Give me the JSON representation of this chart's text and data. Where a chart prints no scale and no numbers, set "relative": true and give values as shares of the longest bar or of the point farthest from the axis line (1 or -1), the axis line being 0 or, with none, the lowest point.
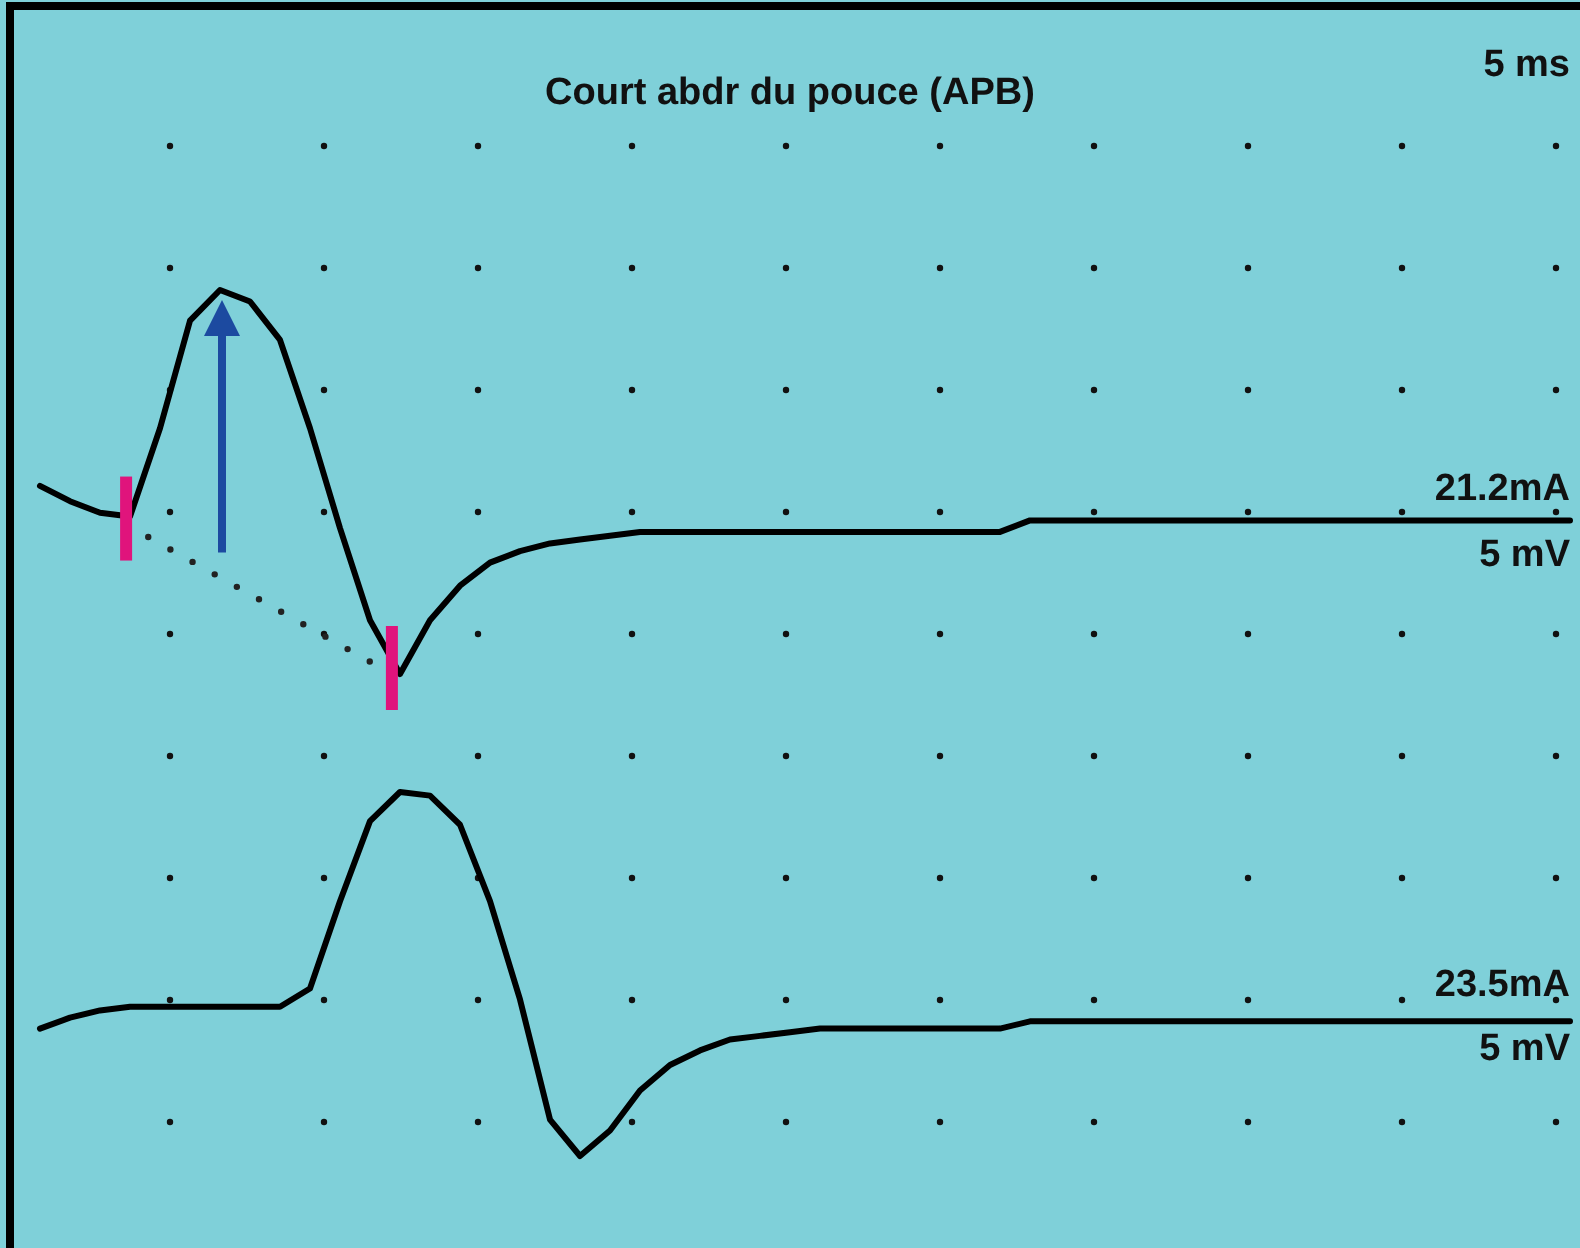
{
  "chart_data": [
    {
      "type": "line",
      "title": "Court abdr du pouce (APB)",
      "relative": true,
      "annotations": [
        "5 ms",
        "21.2mA",
        "5 mV"
      ],
      "categories": [
        null,
        null,
        null,
        null,
        null,
        null,
        null,
        null,
        null,
        null,
        null,
        null,
        null,
        null,
        null,
        null,
        null,
        null,
        null,
        null,
        null,
        null,
        null,
        null,
        null,
        null,
        null,
        null,
        null,
        null,
        null,
        null,
        null,
        null,
        null,
        null,
        null,
        null,
        null,
        null,
        null,
        null,
        null,
        null,
        null,
        null,
        null,
        null,
        null,
        null,
        null,
        null
      ],
      "series": [
        {
          "color": "#000000",
          "values": [
            0.49,
            0.45,
            0.42,
            0.41,
            0.64,
            0.92,
            1,
            0.97,
            0.87,
            0.64,
            0.38,
            0.14,
            0,
            0.14,
            0.23,
            0.29,
            0.32,
            0.34,
            0.35,
            0.36,
            0.37,
            0.37,
            0.37,
            0.37,
            0.37,
            0.37,
            0.37,
            0.37,
            0.37,
            0.37,
            0.37,
            0.37,
            0.37,
            0.4,
            0.4,
            0.4,
            0.4,
            0.4,
            0.4,
            0.4,
            0.4,
            0.4,
            0.4,
            0.4,
            0.4,
            0.4,
            0.4,
            0.4,
            0.4,
            0.4,
            0.4,
            0.4
          ]
        }
      ]
    },
    {
      "type": "line",
      "relative": true,
      "annotations": [
        "23.5mA",
        "5 mV"
      ],
      "categories": [
        null,
        null,
        null,
        null,
        null,
        null,
        null,
        null,
        null,
        null,
        null,
        null,
        null,
        null,
        null,
        null,
        null,
        null,
        null,
        null,
        null,
        null,
        null,
        null,
        null,
        null,
        null,
        null,
        null,
        null,
        null,
        null,
        null,
        null,
        null,
        null,
        null,
        null,
        null,
        null,
        null,
        null,
        null,
        null,
        null,
        null,
        null,
        null,
        null,
        null,
        null,
        null
      ],
      "series": [
        {
          "color": "#000000",
          "values": [
            0.35,
            0.38,
            0.4,
            0.41,
            0.41,
            0.41,
            0.41,
            0.41,
            0.41,
            0.46,
            0.7,
            0.92,
            1,
            0.99,
            0.91,
            0.7,
            0.43,
            0.1,
            0,
            0.07,
            0.18,
            0.25,
            0.29,
            0.32,
            0.33,
            0.34,
            0.35,
            0.35,
            0.35,
            0.35,
            0.35,
            0.35,
            0.35,
            0.37,
            0.37,
            0.37,
            0.37,
            0.37,
            0.37,
            0.37,
            0.37,
            0.37,
            0.37,
            0.37,
            0.37,
            0.37,
            0.37,
            0.37,
            0.37,
            0.37,
            0.37,
            0.37
          ]
        }
      ]
    }
  ]
}
